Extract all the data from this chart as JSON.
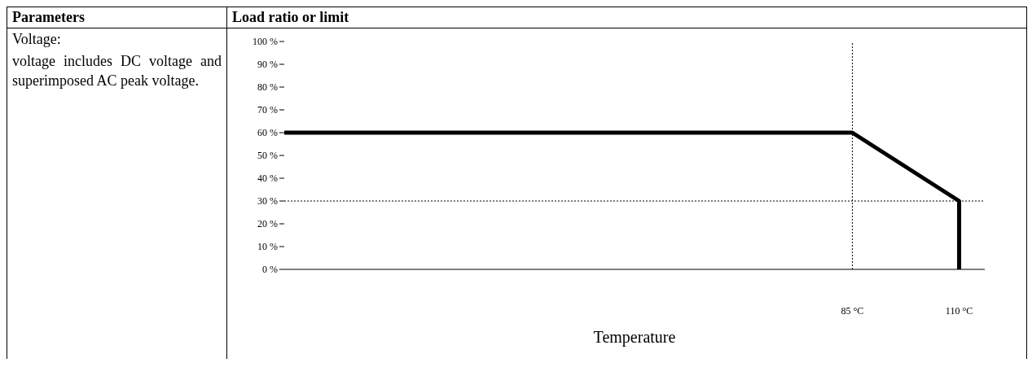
{
  "chart_data": {
    "type": "line",
    "title": "Load ratio or limit",
    "xlabel": "Temperature",
    "annotations": [
      "Parameters",
      "Voltage:",
      "voltage includes DC voltage and superimposed AC peak voltage."
    ],
    "x": [
      -48,
      85,
      110,
      110
    ],
    "series": [
      {
        "color": "#000000",
        "values": [
          60,
          60,
          30,
          0
        ]
      }
    ],
    "xlim": [
      -48,
      116
    ],
    "xticks": [
      {
        "value": 85,
        "label": "85 °C"
      },
      {
        "value": 110,
        "label": "110 °C"
      }
    ],
    "ylim": [
      0,
      100
    ],
    "yticks": [
      {
        "value": 0,
        "label": "0 %"
      },
      {
        "value": 10,
        "label": "10 %"
      },
      {
        "value": 20,
        "label": "20 %"
      },
      {
        "value": 30,
        "label": "30 %"
      },
      {
        "value": 40,
        "label": "40 %"
      },
      {
        "value": 50,
        "label": "50 %"
      },
      {
        "value": 60,
        "label": "60 %"
      },
      {
        "value": 70,
        "label": "70 %"
      },
      {
        "value": 80,
        "label": "80 %"
      },
      {
        "value": 90,
        "label": "90 %"
      },
      {
        "value": 100,
        "label": "100 %"
      }
    ],
    "ref_lines": [
      {
        "axis": "x",
        "value": 85,
        "line_style": "dotted"
      },
      {
        "axis": "y",
        "value": 30,
        "line_style": "dotted"
      }
    ],
    "grid": false,
    "legend": false,
    "marker": "none",
    "line_style": "solid"
  }
}
